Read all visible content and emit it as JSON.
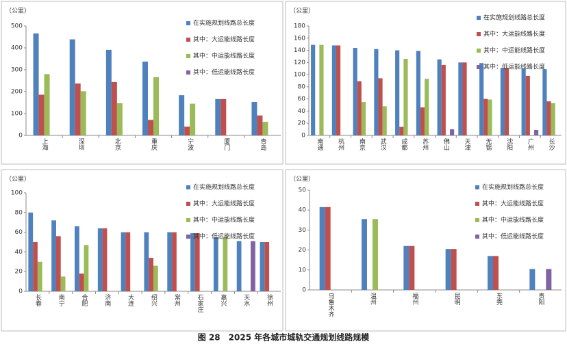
{
  "chart_data": [
    {
      "type": "bar",
      "y_label": "（公里）",
      "categories": [
        "上海",
        "深圳",
        "北京",
        "重庆",
        "宁波",
        "厦门",
        "青岛"
      ],
      "series": [
        {
          "name": "在实施规划线路总长度",
          "color": "#4f81bd",
          "values": [
            466,
            439,
            391,
            337,
            184,
            166,
            153
          ]
        },
        {
          "name": "其中：大运能线路长度",
          "color": "#c0504d",
          "values": [
            186,
            237,
            244,
            71,
            40,
            166,
            91
          ]
        },
        {
          "name": "其中：中运能线路长度",
          "color": "#9bbb59",
          "values": [
            280,
            202,
            147,
            266,
            145,
            null,
            62
          ]
        },
        {
          "name": "其中：低运能线路长度",
          "color": "#8064a2",
          "values": [
            null,
            null,
            null,
            null,
            null,
            null,
            null
          ]
        }
      ],
      "ylim": [
        0,
        500
      ],
      "yticks": [
        0,
        100,
        200,
        300,
        400,
        500
      ]
    },
    {
      "type": "bar",
      "y_label": "（公里）",
      "categories": [
        "南通",
        "杭州",
        "南京",
        "武汉",
        "成都",
        "苏州",
        "佛山",
        "天津",
        "无锡",
        "沈阳",
        "广州",
        "长沙"
      ],
      "series": [
        {
          "name": "在实施规划线路总长度",
          "color": "#4f81bd",
          "values": [
            149,
            148,
            144,
            142,
            140,
            139,
            125,
            120,
            119,
            111,
            110,
            109
          ]
        },
        {
          "name": "其中：大运能线路长度",
          "color": "#c0504d",
          "values": [
            null,
            148,
            89,
            94,
            14,
            46,
            116,
            120,
            60,
            111,
            98,
            56
          ]
        },
        {
          "name": "其中：中运能线路长度",
          "color": "#9bbb59",
          "values": [
            149,
            null,
            55,
            48,
            126,
            93,
            null,
            null,
            59,
            null,
            null,
            53
          ]
        },
        {
          "name": "其中：低运能线路长度",
          "color": "#8064a2",
          "values": [
            null,
            null,
            null,
            null,
            null,
            null,
            10,
            null,
            null,
            null,
            9,
            null
          ]
        }
      ],
      "ylim": [
        0,
        180
      ],
      "yticks": [
        0,
        20,
        40,
        60,
        80,
        100,
        120,
        140,
        160,
        180
      ]
    },
    {
      "type": "bar",
      "y_label": "（公里）",
      "categories": [
        "长春",
        "南宁",
        "合肥",
        "济南",
        "大连",
        "绍兴",
        "常州",
        "石家庄",
        "嘉兴",
        "天水",
        "徐州"
      ],
      "series": [
        {
          "name": "在实施规划线路总长度",
          "color": "#4f81bd",
          "values": [
            80,
            72,
            66,
            64,
            60,
            60,
            60,
            59,
            55,
            51,
            50
          ]
        },
        {
          "name": "其中：大运能线路长度",
          "color": "#c0504d",
          "values": [
            50,
            56,
            18,
            64,
            60,
            34,
            60,
            59,
            null,
            null,
            50
          ]
        },
        {
          "name": "其中：中运能线路长度",
          "color": "#9bbb59",
          "values": [
            30,
            15,
            47,
            null,
            null,
            26,
            null,
            null,
            55,
            null,
            null
          ]
        },
        {
          "name": "其中：低运能线路长度",
          "color": "#8064a2",
          "values": [
            null,
            null,
            null,
            null,
            null,
            null,
            null,
            null,
            null,
            51,
            null
          ]
        }
      ],
      "ylim": [
        0,
        100
      ],
      "yticks": [
        0,
        20,
        40,
        60,
        80,
        100
      ]
    },
    {
      "type": "bar",
      "y_label": "（公里）",
      "categories": [
        "乌鲁木齐",
        "温州",
        "福州",
        "昆明",
        "东莞",
        "贵阳"
      ],
      "series": [
        {
          "name": "在实施规划线路总长度",
          "color": "#4f81bd",
          "values": [
            41.5,
            35.5,
            22,
            20.5,
            17,
            10.5
          ]
        },
        {
          "name": "其中：大运能线路长度",
          "color": "#c0504d",
          "values": [
            41.5,
            null,
            22,
            20.5,
            17,
            null
          ]
        },
        {
          "name": "其中：中运能线路长度",
          "color": "#9bbb59",
          "values": [
            null,
            35.5,
            null,
            null,
            null,
            null
          ]
        },
        {
          "name": "其中：低运能线路长度",
          "color": "#8064a2",
          "values": [
            null,
            null,
            null,
            null,
            null,
            10.5
          ]
        }
      ],
      "ylim": [
        0,
        50
      ],
      "yticks": [
        0,
        10,
        20,
        30,
        40,
        50
      ]
    }
  ],
  "caption": "图 28　2025 年各城市城轨交通规划线路规模"
}
